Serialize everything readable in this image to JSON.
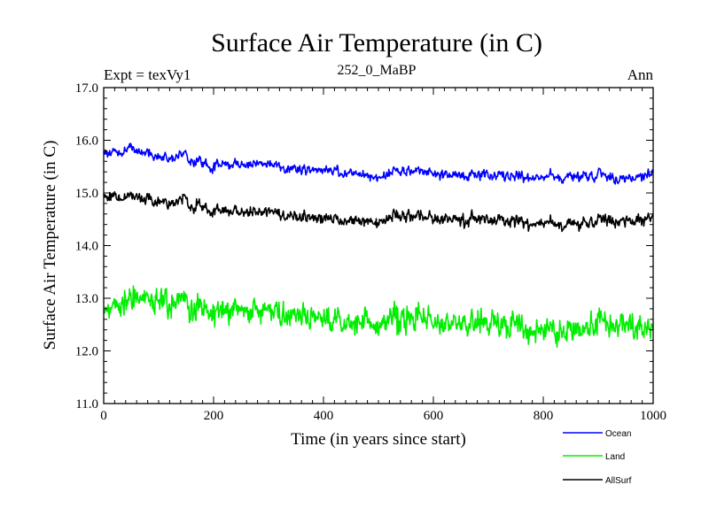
{
  "chart_data": {
    "type": "line",
    "title": "Surface Air Temperature (in C)",
    "subtitle_left": "Expt = texVy1",
    "subtitle_center": "252_0_MaBP",
    "subtitle_right": "Ann",
    "xlabel": "Time (in years since start)",
    "ylabel": "Surface Air Temperature (in C)",
    "xlim": [
      0,
      1000
    ],
    "ylim": [
      11.0,
      17.0
    ],
    "x_ticks": [
      0,
      200,
      400,
      600,
      800,
      1000
    ],
    "x_tick_labels": [
      "0",
      "200",
      "400",
      "600",
      "800",
      "1000"
    ],
    "y_ticks": [
      11.0,
      12.0,
      13.0,
      14.0,
      15.0,
      16.0,
      17.0
    ],
    "y_tick_labels": [
      "11.0",
      "12.0",
      "13.0",
      "14.0",
      "15.0",
      "16.0",
      "17.0"
    ],
    "grid": false,
    "legend_position": "bottom-right",
    "x": [
      0,
      50,
      100,
      150,
      200,
      250,
      300,
      350,
      400,
      450,
      500,
      550,
      600,
      650,
      700,
      750,
      800,
      850,
      900,
      950,
      1000
    ],
    "series": [
      {
        "name": "Ocean",
        "color": "#0000ff",
        "values": [
          15.75,
          15.85,
          15.7,
          15.7,
          15.5,
          15.55,
          15.55,
          15.45,
          15.45,
          15.4,
          15.3,
          15.45,
          15.35,
          15.35,
          15.35,
          15.3,
          15.3,
          15.3,
          15.35,
          15.25,
          15.35
        ],
        "variability": 0.13
      },
      {
        "name": "Land",
        "color": "#00ee00",
        "values": [
          12.8,
          13.0,
          13.0,
          12.9,
          12.75,
          12.8,
          12.8,
          12.65,
          12.6,
          12.6,
          12.5,
          12.65,
          12.55,
          12.55,
          12.55,
          12.5,
          12.4,
          12.4,
          12.55,
          12.5,
          12.45
        ],
        "variability": 0.35
      },
      {
        "name": "AllSurf",
        "color": "#000000",
        "values": [
          14.95,
          14.95,
          14.85,
          14.85,
          14.65,
          14.65,
          14.65,
          14.55,
          14.55,
          14.5,
          14.45,
          14.6,
          14.5,
          14.5,
          14.5,
          14.45,
          14.4,
          14.4,
          14.5,
          14.45,
          14.5
        ],
        "variability": 0.15
      }
    ]
  }
}
